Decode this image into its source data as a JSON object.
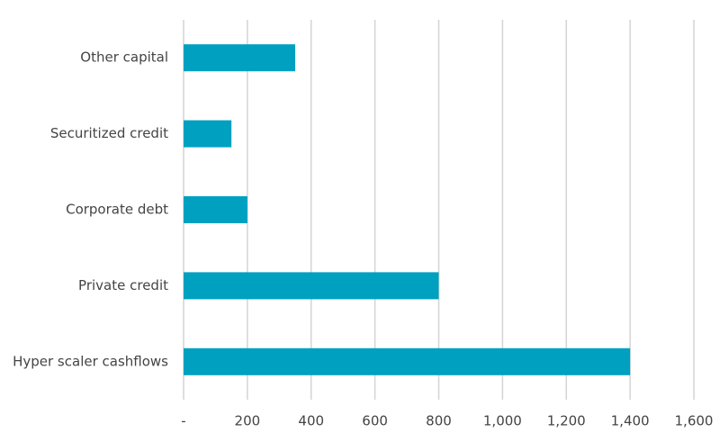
{
  "chart_data": {
    "type": "hbar",
    "categories": [
      "Other capital",
      "Securitized credit",
      "Corporate debt",
      "Private credit",
      "Hyper scaler cashflows"
    ],
    "values": [
      350,
      150,
      200,
      800,
      1400
    ],
    "color": "#00a0c1",
    "xlim": [
      0,
      1600
    ],
    "xticks": [
      {
        "value": 0,
        "label": "-"
      },
      200,
      400,
      600,
      800,
      {
        "value": 1000,
        "label": "1,000"
      },
      {
        "value": 1200,
        "label": "1,200"
      },
      {
        "value": 1400,
        "label": "1,400"
      },
      {
        "value": 1600,
        "label": "1,600"
      }
    ],
    "grid": true
  }
}
